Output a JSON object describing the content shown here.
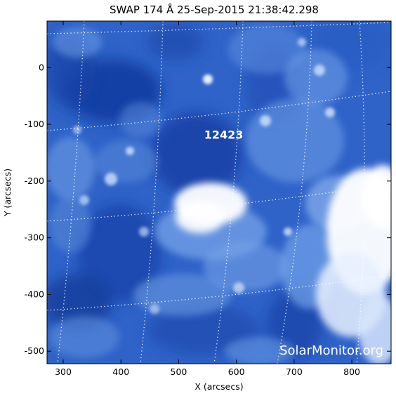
{
  "title": "SWAP 174 Å 25-Sep-2015 21:38:42.298",
  "xlabel": "X (arcsecs)",
  "ylabel": "Y (arcsecs)",
  "x_ticks": [
    "300",
    "400",
    "500",
    "600",
    "700",
    "800"
  ],
  "y_ticks": [
    "0",
    "-100",
    "-200",
    "-300",
    "-400",
    "-500"
  ],
  "x_tick_values": [
    300,
    400,
    500,
    600,
    700,
    800
  ],
  "y_tick_values": [
    0,
    -100,
    -200,
    -300,
    -400,
    -500
  ],
  "x_range": [
    272,
    868
  ],
  "y_range": [
    -522,
    82
  ],
  "active_region": {
    "label": "12423",
    "x": 578,
    "y": -118
  },
  "watermark": "SolarMonitor.org",
  "colors": {
    "background": "#ffffff",
    "image_base": "#2f63c8",
    "image_bright": "#ffffff",
    "image_dark": "#0d2f8f",
    "grid": "#ffffff"
  }
}
